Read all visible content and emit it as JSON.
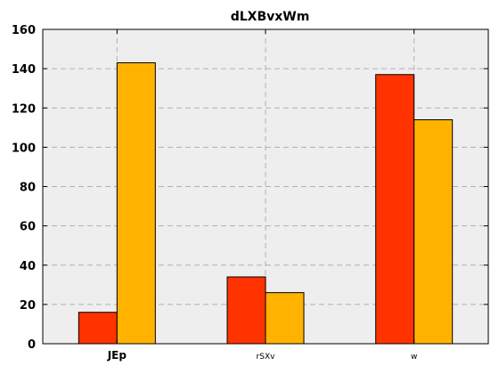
{
  "chart_data": {
    "type": "bar",
    "title": "dLXBvxWm",
    "xlabel": "",
    "ylabel": "",
    "categories": [
      "JEp",
      "rSXv",
      "w"
    ],
    "series": [
      {
        "values": [
          16,
          34,
          137
        ],
        "color": "#ff3300"
      },
      {
        "values": [
          143,
          26,
          114
        ],
        "color": "#ffb300"
      }
    ],
    "ylim": [
      0,
      160
    ],
    "yticks": [
      0,
      20,
      40,
      60,
      80,
      100,
      120,
      140,
      160
    ],
    "grid": true,
    "legend": "none",
    "colors": {
      "plot_background": "#eeeeee",
      "grid": "#b0b0b0",
      "bar_edge": "#000000"
    }
  }
}
